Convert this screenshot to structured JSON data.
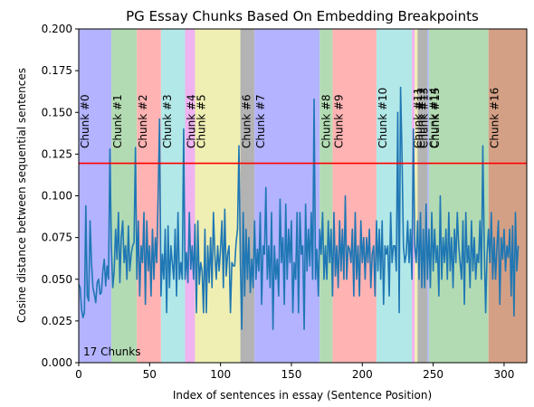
{
  "chart_data": {
    "type": "line",
    "title": "PG Essay Chunks Based On Embedding Breakpoints",
    "xlabel": "Index of sentences in essay (Sentence Position)",
    "ylabel": "Cosine distance between sequential sentences",
    "xlim": [
      0,
      316
    ],
    "ylim": [
      0.0,
      0.2
    ],
    "xticks": [
      0,
      50,
      100,
      150,
      200,
      250,
      300
    ],
    "yticks": [
      0.0,
      0.025,
      0.05,
      0.075,
      0.1,
      0.125,
      0.15,
      0.175,
      0.2
    ],
    "ytick_labels": [
      "0.000",
      "0.025",
      "0.050",
      "0.075",
      "0.100",
      "0.125",
      "0.150",
      "0.175",
      "0.200"
    ],
    "grid": false,
    "threshold": {
      "y": 0.1195,
      "color": "#ff0000"
    },
    "chunk_count_label": "17 Chunks",
    "line_color": "#1f77b4",
    "chunks": [
      {
        "label": "Chunk #0",
        "start": 0,
        "end": 23,
        "color": "#b3b3ff"
      },
      {
        "label": "Chunk #1",
        "start": 23,
        "end": 41,
        "color": "#b3dbb3"
      },
      {
        "label": "Chunk #2",
        "start": 41,
        "end": 58,
        "color": "#ffb3b3"
      },
      {
        "label": "Chunk #3",
        "start": 58,
        "end": 75,
        "color": "#b3e8e8"
      },
      {
        "label": "Chunk #4",
        "start": 75,
        "end": 82,
        "color": "#efb3ef"
      },
      {
        "label": "Chunk #5",
        "start": 82,
        "end": 114,
        "color": "#efefb3"
      },
      {
        "label": "Chunk #6",
        "start": 114,
        "end": 124,
        "color": "#b3b3b3"
      },
      {
        "label": "Chunk #7",
        "start": 124,
        "end": 170,
        "color": "#b3b3ff"
      },
      {
        "label": "Chunk #8",
        "start": 170,
        "end": 179,
        "color": "#b3dbb3"
      },
      {
        "label": "Chunk #9",
        "start": 179,
        "end": 210,
        "color": "#ffb3b3"
      },
      {
        "label": "Chunk #10",
        "start": 210,
        "end": 235,
        "color": "#b3e8e8"
      },
      {
        "label": "Chunk #11",
        "start": 235,
        "end": 237,
        "color": "#efb3ef"
      },
      {
        "label": "Chunk #12",
        "start": 237,
        "end": 239,
        "color": "#efefb3"
      },
      {
        "label": "Chunk #13",
        "start": 239,
        "end": 246,
        "color": "#b3b3b3"
      },
      {
        "label": "Chunk #14",
        "start": 246,
        "end": 247,
        "color": "#b3b3ff"
      },
      {
        "label": "Chunk #15",
        "start": 247,
        "end": 289,
        "color": "#b3dbb3"
      },
      {
        "label": "Chunk #16",
        "start": 289,
        "end": 316,
        "color": "#d4a085"
      }
    ],
    "series": [
      {
        "values": [
          0.047,
          0.045,
          0.032,
          0.027,
          0.03,
          0.094,
          0.04,
          0.037,
          0.085,
          0.06,
          0.045,
          0.041,
          0.036,
          0.048,
          0.05,
          0.041,
          0.042,
          0.055,
          0.062,
          0.046,
          0.058,
          0.05,
          0.128,
          0.07,
          0.045,
          0.055,
          0.08,
          0.062,
          0.09,
          0.048,
          0.075,
          0.085,
          0.06,
          0.07,
          0.05,
          0.082,
          0.055,
          0.065,
          0.07,
          0.072,
          0.129,
          0.05,
          0.085,
          0.04,
          0.07,
          0.06,
          0.09,
          0.035,
          0.085,
          0.055,
          0.07,
          0.04,
          0.08,
          0.05,
          0.075,
          0.06,
          0.1,
          0.146,
          0.04,
          0.065,
          0.05,
          0.08,
          0.03,
          0.082,
          0.045,
          0.07,
          0.06,
          0.05,
          0.08,
          0.04,
          0.09,
          0.05,
          0.06,
          0.05,
          0.14,
          0.05,
          0.066,
          0.048,
          0.09,
          0.056,
          0.07,
          0.05,
          0.083,
          0.03,
          0.085,
          0.047,
          0.06,
          0.055,
          0.03,
          0.08,
          0.03,
          0.07,
          0.048,
          0.075,
          0.045,
          0.09,
          0.065,
          0.05,
          0.07,
          0.055,
          0.068,
          0.085,
          0.045,
          0.092,
          0.052,
          0.065,
          0.07,
          0.03,
          0.06,
          0.058,
          0.058,
          0.072,
          0.08,
          0.13,
          0.06,
          0.02,
          0.09,
          0.04,
          0.08,
          0.05,
          0.075,
          0.042,
          0.062,
          0.045,
          0.085,
          0.05,
          0.068,
          0.055,
          0.09,
          0.035,
          0.07,
          0.065,
          0.105,
          0.05,
          0.07,
          0.045,
          0.09,
          0.02,
          0.07,
          0.05,
          0.062,
          0.04,
          0.098,
          0.06,
          0.075,
          0.035,
          0.095,
          0.05,
          0.08,
          0.06,
          0.085,
          0.03,
          0.06,
          0.05,
          0.09,
          0.03,
          0.09,
          0.065,
          0.07,
          0.02,
          0.095,
          0.055,
          0.08,
          0.058,
          0.09,
          0.05,
          0.158,
          0.05,
          0.068,
          0.04,
          0.08,
          0.065,
          0.09,
          0.05,
          0.07,
          0.05,
          0.085,
          0.06,
          0.08,
          0.04,
          0.09,
          0.052,
          0.07,
          0.045,
          0.085,
          0.055,
          0.08,
          0.05,
          0.1,
          0.05,
          0.07,
          0.068,
          0.06,
          0.08,
          0.04,
          0.09,
          0.05,
          0.07,
          0.04,
          0.085,
          0.06,
          0.075,
          0.05,
          0.075,
          0.06,
          0.08,
          0.045,
          0.065,
          0.07,
          0.04,
          0.085,
          0.055,
          0.08,
          0.05,
          0.085,
          0.035,
          0.07,
          0.065,
          0.07,
          0.04,
          0.09,
          0.06,
          0.07,
          0.07,
          0.055,
          0.15,
          0.03,
          0.165,
          0.125,
          0.07,
          0.06,
          0.065,
          0.085,
          0.06,
          0.08,
          0.05,
          0.14,
          0.07,
          0.06,
          0.085,
          0.05,
          0.09,
          0.045,
          0.08,
          0.045,
          0.095,
          0.05,
          0.08,
          0.045,
          0.09,
          0.055,
          0.08,
          0.06,
          0.07,
          0.04,
          0.1,
          0.05,
          0.075,
          0.06,
          0.08,
          0.05,
          0.09,
          0.055,
          0.075,
          0.045,
          0.08,
          0.06,
          0.09,
          0.07,
          0.06,
          0.05,
          0.085,
          0.035,
          0.09,
          0.06,
          0.07,
          0.045,
          0.085,
          0.055,
          0.075,
          0.05,
          0.065,
          0.06,
          0.085,
          0.05,
          0.13,
          0.07,
          0.03,
          0.065,
          0.08,
          0.06,
          0.09,
          0.05,
          0.075,
          0.05,
          0.07,
          0.085,
          0.035,
          0.075,
          0.062,
          0.08,
          0.055,
          0.07,
          0.063,
          0.08,
          0.04,
          0.082,
          0.028,
          0.09,
          0.055,
          0.07
        ]
      }
    ]
  }
}
